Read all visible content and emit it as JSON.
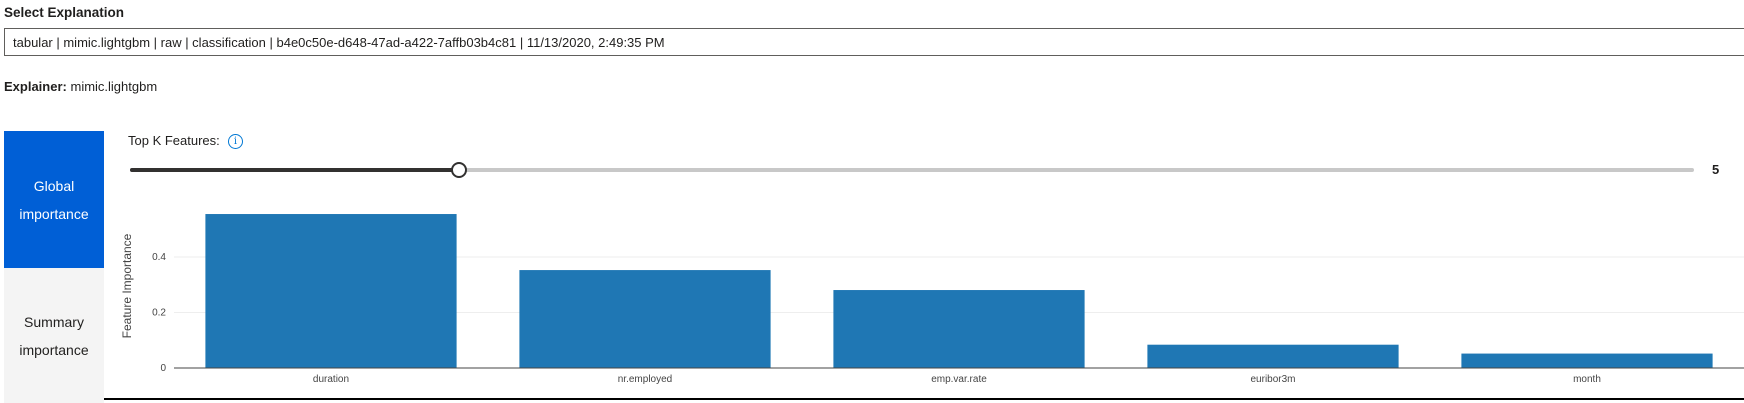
{
  "select_explanation": {
    "label": "Select Explanation",
    "selected_value": "tabular | mimic.lightgbm | raw | classification | b4e0c50e-d648-47ad-a422-7affb03b4c81 | 11/13/2020, 2:49:35 PM"
  },
  "explainer": {
    "key": "Explainer:",
    "value": "mimic.lightgbm"
  },
  "tabs": [
    {
      "label": "Global importance",
      "active": true
    },
    {
      "label": "Summary importance",
      "active": false
    }
  ],
  "top_k": {
    "label": "Top K Features:",
    "value": "5",
    "fraction": 0.2105
  },
  "colors": {
    "bar": "#1f77b4",
    "tab_active": "#005fd6",
    "grid": "#eeeeee"
  },
  "chart_data": {
    "type": "bar",
    "categories": [
      "duration",
      "nr.employed",
      "emp.var.rate",
      "euribor3m",
      "month"
    ],
    "values": [
      0.555,
      0.353,
      0.281,
      0.084,
      0.052
    ],
    "ylabel": "Feature Importance",
    "yticks": [
      {
        "value": 0,
        "label": "0"
      },
      {
        "value": 0.2,
        "label": "0.2"
      },
      {
        "value": 0.4,
        "label": "0.4"
      }
    ],
    "ylim": [
      0,
      0.62
    ],
    "grid": true
  }
}
